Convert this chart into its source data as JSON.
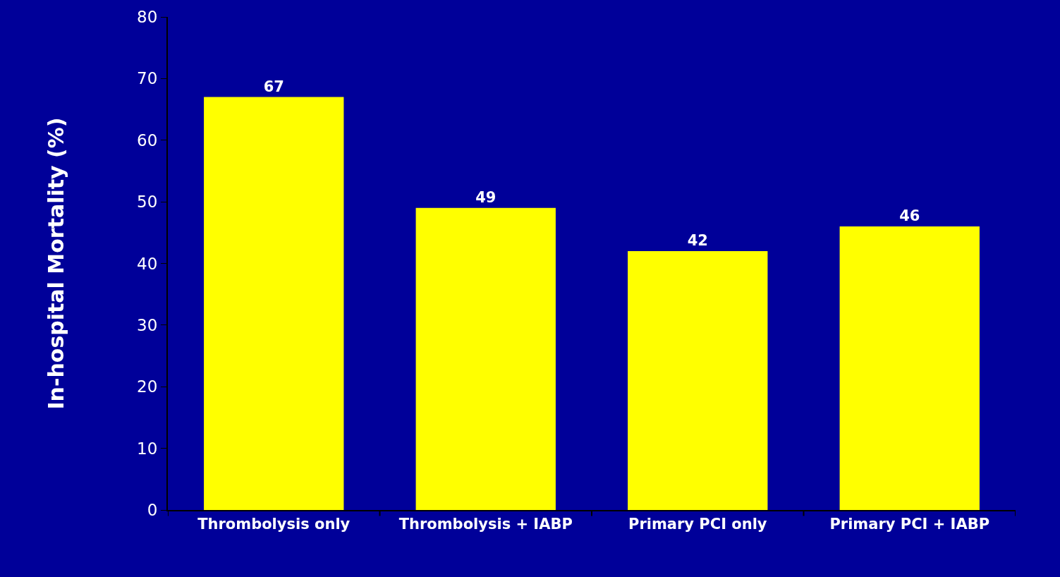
{
  "chart_data": {
    "type": "bar",
    "ylabel": "In-hospital Mortality (%)",
    "categories": [
      "Thrombolysis only",
      "Thrombolysis + IABP",
      "Primary PCI only",
      "Primary PCI + IABP"
    ],
    "values": [
      67,
      49,
      42,
      46
    ],
    "color": "#ffff00",
    "data_labels": true,
    "ylim": [
      0,
      80
    ],
    "yticks": [
      0,
      10,
      20,
      30,
      40,
      50,
      60,
      70,
      80
    ],
    "grid": false
  }
}
